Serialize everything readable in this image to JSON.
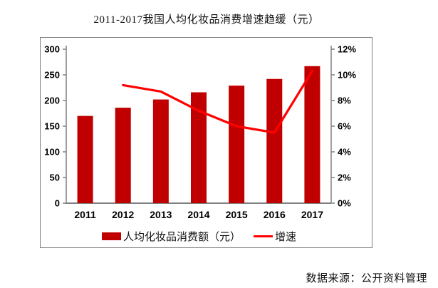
{
  "title": "2011-2017我国人均化妆品消费增速趋缓（元）",
  "source_note": "数据来源：公开资料管理",
  "legend": {
    "bar_label": "人均化妆品消费额（元）",
    "line_label": "增速"
  },
  "colors": {
    "bar": "#C00000",
    "line": "#FF0000",
    "axis": "#808080",
    "border": "#7F7F7F",
    "text": "#000000"
  },
  "chart_data": {
    "type": "bar",
    "subtype": "bar+line combo, dual axis",
    "title": "2011-2017我国人均化妆品消费增速趋缓（元）",
    "categories": [
      "2011",
      "2012",
      "2013",
      "2014",
      "2015",
      "2016",
      "2017"
    ],
    "series": [
      {
        "name": "人均化妆品消费额（元）",
        "type": "bar",
        "axis": "left",
        "color": "#C00000",
        "values": [
          170,
          186,
          202,
          216,
          229,
          242,
          267
        ]
      },
      {
        "name": "增速",
        "type": "line",
        "axis": "right",
        "color": "#FF0000",
        "unit": "%",
        "values": [
          null,
          9.2,
          8.7,
          7.2,
          6.0,
          5.5,
          10.3
        ]
      }
    ],
    "left_axis": {
      "min": 0,
      "max": 300,
      "step": 50,
      "ticks": [
        "300",
        "250",
        "200",
        "150",
        "100",
        "50",
        "0"
      ]
    },
    "right_axis": {
      "min": 0,
      "max": 12,
      "step": 2,
      "ticks": [
        "12%",
        "10%",
        "8%",
        "6%",
        "4%",
        "2%",
        "0%"
      ]
    },
    "legend_position": "bottom",
    "grid": false
  }
}
